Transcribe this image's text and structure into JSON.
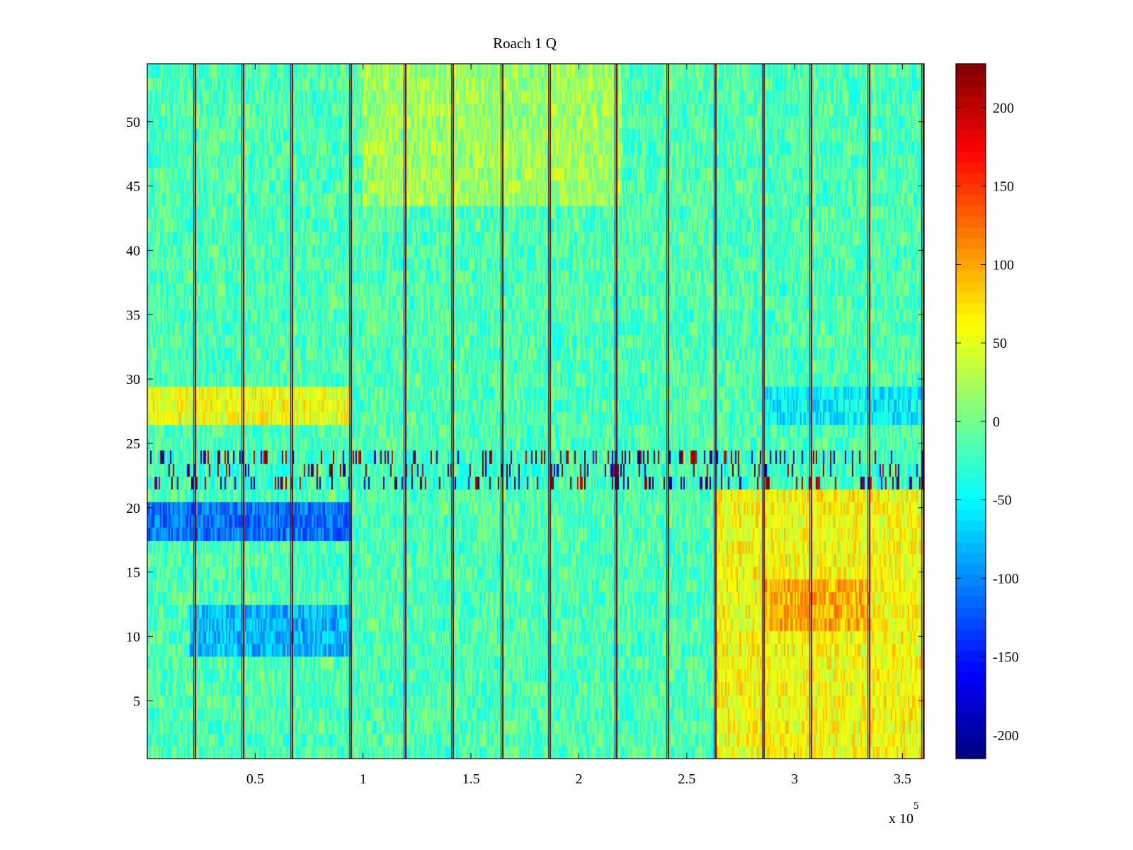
{
  "chart_data": {
    "type": "heatmap",
    "title": "Roach 1 Q",
    "xlabel": "",
    "ylabel": "",
    "x_exponent_label": "x 10",
    "x_exponent": "5",
    "xlim": [
      0,
      3.6
    ],
    "ylim": [
      0.5,
      54.5
    ],
    "x_ticks": [
      "0.5",
      "1",
      "1.5",
      "2",
      "2.5",
      "3",
      "3.5"
    ],
    "x_tick_values": [
      0.5,
      1,
      1.5,
      2,
      2.5,
      3,
      3.5
    ],
    "y_ticks": [
      "5",
      "10",
      "15",
      "20",
      "25",
      "30",
      "35",
      "40",
      "45",
      "50"
    ],
    "y_tick_values": [
      5,
      10,
      15,
      20,
      25,
      30,
      35,
      40,
      45,
      50
    ],
    "colorbar": {
      "colormap": "jet",
      "range": [
        -215,
        228
      ],
      "ticks": [
        "-200",
        "-150",
        "-100",
        "-50",
        "0",
        "50",
        "100",
        "150",
        "200"
      ],
      "tick_values": [
        -200,
        -150,
        -100,
        -50,
        0,
        50,
        100,
        150,
        200
      ]
    },
    "rows": 54,
    "background_value": -15,
    "vertical_boundaries_x": [
      0.225,
      0.45,
      0.675,
      0.95,
      1.2,
      1.42,
      1.65,
      1.87,
      2.18,
      2.42,
      2.64,
      2.86,
      3.08,
      3.35,
      3.6
    ],
    "notable_regions": [
      {
        "rows": [
          18,
          20
        ],
        "x": [
          0.0,
          0.95
        ],
        "value": -110
      },
      {
        "rows": [
          9,
          12
        ],
        "x": [
          0.2,
          0.95
        ],
        "value": -80
      },
      {
        "rows": [
          27,
          29
        ],
        "x": [
          0.0,
          0.95
        ],
        "value": 55
      },
      {
        "rows": [
          22,
          24
        ],
        "x": [
          0.0,
          3.6
        ],
        "value": -20,
        "note": "intermittent extreme values"
      },
      {
        "rows": [
          1,
          21
        ],
        "x": [
          2.64,
          3.6
        ],
        "value": 60
      },
      {
        "rows": [
          11,
          14
        ],
        "x": [
          2.86,
          3.35
        ],
        "value": 95
      },
      {
        "rows": [
          27,
          29
        ],
        "x": [
          2.86,
          3.6
        ],
        "value": -55
      },
      {
        "rows": [
          44,
          54
        ],
        "x": [
          1.0,
          2.2
        ],
        "value": 20
      }
    ]
  }
}
